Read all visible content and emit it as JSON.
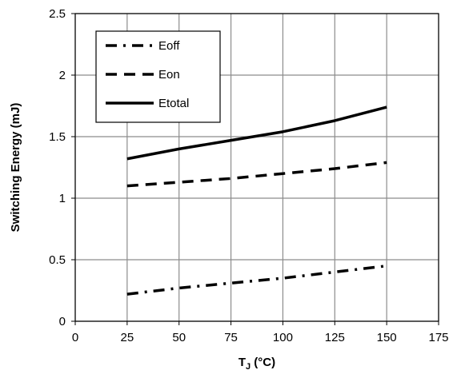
{
  "chart_data": {
    "type": "line",
    "xlabel": "T",
    "xlabel_subscript": "J",
    "xlabel_unit": " (°C)",
    "ylabel": "Switching Energy  (mJ)",
    "xlim": [
      0,
      175
    ],
    "ylim": [
      0,
      2.5
    ],
    "x_ticks": [
      0,
      25,
      50,
      75,
      100,
      125,
      150,
      175
    ],
    "y_ticks": [
      0,
      0.5,
      1,
      1.5,
      2,
      2.5
    ],
    "grid": true,
    "legend_position": "top-left",
    "series": [
      {
        "name": "Eoff",
        "dash": "dashdot",
        "x": [
          25,
          50,
          75,
          100,
          125,
          150
        ],
        "y": [
          0.22,
          0.27,
          0.31,
          0.35,
          0.4,
          0.45
        ]
      },
      {
        "name": "Eon",
        "dash": "dash",
        "x": [
          25,
          50,
          75,
          100,
          125,
          150
        ],
        "y": [
          1.1,
          1.13,
          1.16,
          1.2,
          1.24,
          1.29
        ]
      },
      {
        "name": "Etotal",
        "dash": "solid",
        "x": [
          25,
          50,
          75,
          100,
          125,
          150
        ],
        "y": [
          1.32,
          1.4,
          1.47,
          1.54,
          1.63,
          1.74
        ]
      }
    ]
  }
}
